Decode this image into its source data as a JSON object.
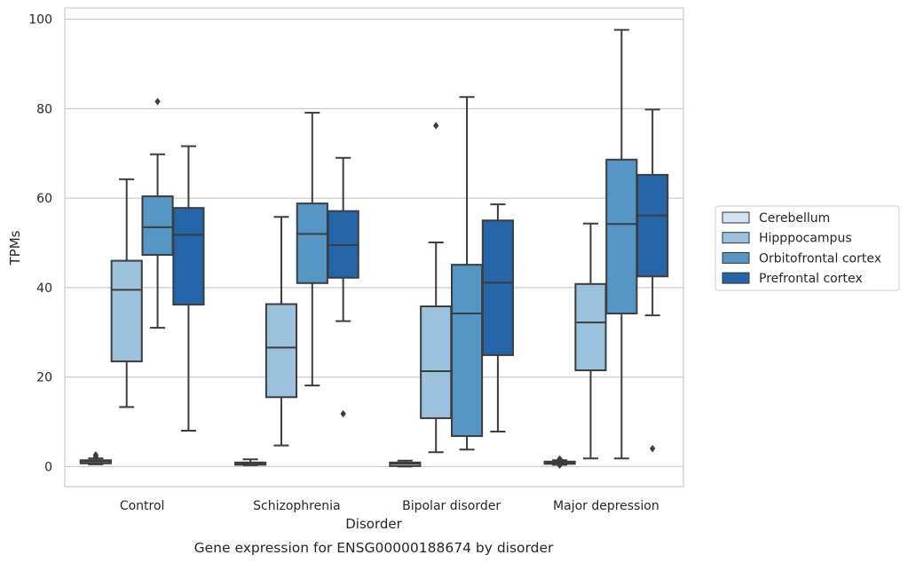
{
  "chart_data": {
    "type": "box",
    "title": "",
    "caption": "Gene expression for ENSG00000188674 by disorder",
    "xlabel": "Disorder",
    "ylabel": "TPMs",
    "ylim": [
      -4.5,
      102.5
    ],
    "yticks": [
      0,
      20,
      40,
      60,
      80,
      100
    ],
    "grid": "horizontal",
    "legend_position": "right",
    "categories": [
      "Control",
      "Schizophrenia",
      "Bipolar disorder",
      "Major depression"
    ],
    "series": [
      {
        "name": "Cerebellum",
        "color": "#d1e2f2",
        "boxes": [
          {
            "whislo": 0.5,
            "q1": 0.7,
            "med": 1.1,
            "q3": 1.4,
            "whishi": 1.8,
            "fliers": [
              2.2,
              2.6
            ]
          },
          {
            "whislo": 0.3,
            "q1": 0.4,
            "med": 0.7,
            "q3": 0.9,
            "whishi": 1.6,
            "fliers": []
          },
          {
            "whislo": 0.0,
            "q1": 0.1,
            "med": 0.6,
            "q3": 0.9,
            "whishi": 1.3,
            "fliers": []
          },
          {
            "whislo": 0.4,
            "q1": 0.6,
            "med": 0.9,
            "q3": 1.1,
            "whishi": 1.4,
            "fliers": [
              0.3,
              1.7
            ]
          }
        ]
      },
      {
        "name": "Hipppocampus",
        "color": "#9ac2dd",
        "boxes": [
          {
            "whislo": 13.3,
            "q1": 23.5,
            "med": 39.5,
            "q3": 46.0,
            "whishi": 64.2,
            "fliers": []
          },
          {
            "whislo": 4.7,
            "q1": 15.5,
            "med": 26.6,
            "q3": 36.3,
            "whishi": 55.8,
            "fliers": []
          },
          {
            "whislo": 3.2,
            "q1": 10.8,
            "med": 21.3,
            "q3": 35.8,
            "whishi": 50.1,
            "fliers": [
              76.2
            ]
          },
          {
            "whislo": 1.8,
            "q1": 21.5,
            "med": 32.2,
            "q3": 40.8,
            "whishi": 54.3,
            "fliers": []
          }
        ]
      },
      {
        "name": "Orbitofrontal cortex",
        "color": "#5596c5",
        "boxes": [
          {
            "whislo": 31.0,
            "q1": 47.3,
            "med": 53.5,
            "q3": 60.4,
            "whishi": 69.8,
            "fliers": [
              81.6
            ]
          },
          {
            "whislo": 18.1,
            "q1": 41.0,
            "med": 52.0,
            "q3": 58.8,
            "whishi": 79.1,
            "fliers": []
          },
          {
            "whislo": 3.8,
            "q1": 6.8,
            "med": 34.2,
            "q3": 45.1,
            "whishi": 82.6,
            "fliers": []
          },
          {
            "whislo": 1.8,
            "q1": 34.2,
            "med": 54.2,
            "q3": 68.6,
            "whishi": 97.6,
            "fliers": []
          }
        ]
      },
      {
        "name": "Prefrontal cortex",
        "color": "#2464a8",
        "boxes": [
          {
            "whislo": 8.0,
            "q1": 36.2,
            "med": 51.8,
            "q3": 57.8,
            "whishi": 71.6,
            "fliers": []
          },
          {
            "whislo": 32.5,
            "q1": 42.2,
            "med": 49.5,
            "q3": 57.1,
            "whishi": 69.0,
            "fliers": [
              11.8
            ]
          },
          {
            "whislo": 7.8,
            "q1": 24.9,
            "med": 41.1,
            "q3": 55.0,
            "whishi": 58.6,
            "fliers": []
          },
          {
            "whislo": 33.8,
            "q1": 42.5,
            "med": 56.1,
            "q3": 65.2,
            "whishi": 79.8,
            "fliers": [
              4.0
            ]
          }
        ]
      }
    ]
  }
}
